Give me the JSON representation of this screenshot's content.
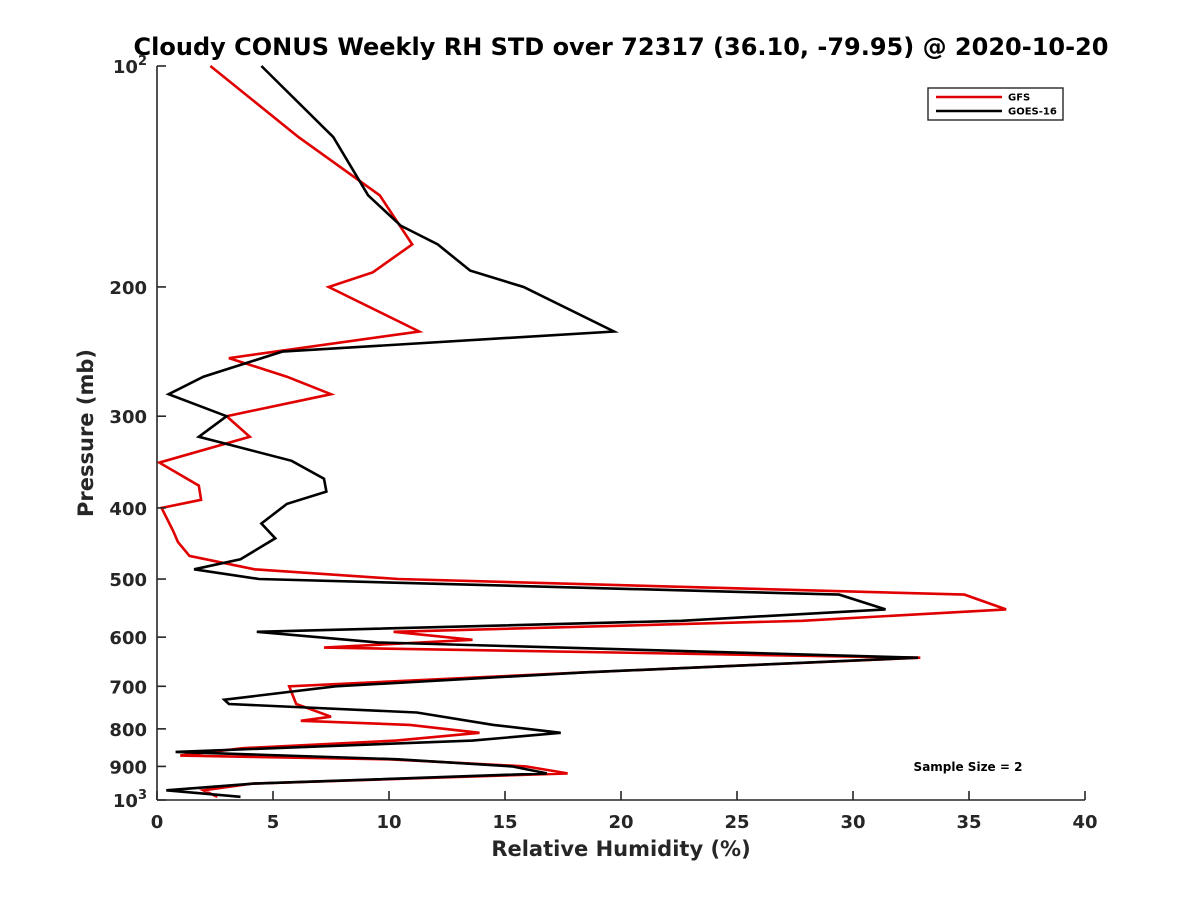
{
  "chart_data": {
    "type": "line",
    "title": "Cloudy CONUS Weekly RH STD over 72317 (36.10, -79.95) @ 2020-10-20",
    "xlabel": "Relative Humidity (%)",
    "ylabel": "Pressure (mb)",
    "xlim": [
      0,
      40
    ],
    "ylim": [
      100,
      1000
    ],
    "yscale": "log",
    "y_reversed": true,
    "x_ticks": [
      0,
      5,
      10,
      15,
      20,
      25,
      30,
      35,
      40
    ],
    "x_tick_labels": [
      "0",
      "5",
      "10",
      "15",
      "20",
      "25",
      "30",
      "35",
      "40"
    ],
    "y_ticks": [
      100,
      200,
      300,
      400,
      500,
      600,
      700,
      800,
      900,
      1000
    ],
    "y_tick_labels": [
      "10^2",
      "200",
      "300",
      "400",
      "500",
      "600",
      "700",
      "800",
      "900",
      "10^3"
    ],
    "grid": false,
    "legend_position": "top-right",
    "annotation": "Sample Size = 2",
    "series": [
      {
        "name": "GFS",
        "color": "#e00000",
        "points": [
          [
            2.3,
            100
          ],
          [
            6.1,
            125
          ],
          [
            9.6,
            150
          ],
          [
            11.0,
            175
          ],
          [
            9.3,
            191
          ],
          [
            7.4,
            200
          ],
          [
            11.3,
            230
          ],
          [
            3.1,
            250
          ],
          [
            5.6,
            265
          ],
          [
            7.5,
            280
          ],
          [
            3.0,
            300
          ],
          [
            4.0,
            320
          ],
          [
            0.1,
            347
          ],
          [
            1.8,
            373
          ],
          [
            1.9,
            390
          ],
          [
            0.2,
            400
          ],
          [
            0.7,
            430
          ],
          [
            0.9,
            445
          ],
          [
            1.4,
            465
          ],
          [
            4.2,
            485
          ],
          [
            10.4,
            500
          ],
          [
            34.8,
            525
          ],
          [
            36.6,
            550
          ],
          [
            27.8,
            570
          ],
          [
            10.2,
            590
          ],
          [
            13.6,
            605
          ],
          [
            7.2,
            620
          ],
          [
            32.9,
            640
          ],
          [
            18.5,
            670
          ],
          [
            5.7,
            700
          ],
          [
            6.0,
            740
          ],
          [
            7.5,
            770
          ],
          [
            6.2,
            780
          ],
          [
            10.9,
            790
          ],
          [
            13.9,
            810
          ],
          [
            10.3,
            830
          ],
          [
            3.7,
            850
          ],
          [
            1.0,
            870
          ],
          [
            10.0,
            880
          ],
          [
            15.9,
            900
          ],
          [
            17.7,
            920
          ],
          [
            4.1,
            950
          ],
          [
            2.0,
            970
          ],
          [
            2.6,
            990
          ]
        ]
      },
      {
        "name": "GOES-16",
        "color": "#000000",
        "points": [
          [
            4.5,
            100
          ],
          [
            7.6,
            125
          ],
          [
            9.1,
            150
          ],
          [
            10.5,
            165
          ],
          [
            12.1,
            175
          ],
          [
            13.5,
            190
          ],
          [
            15.8,
            200
          ],
          [
            19.7,
            230
          ],
          [
            5.4,
            245
          ],
          [
            2.0,
            265
          ],
          [
            0.5,
            280
          ],
          [
            3.0,
            300
          ],
          [
            1.8,
            320
          ],
          [
            5.8,
            345
          ],
          [
            7.2,
            365
          ],
          [
            7.3,
            380
          ],
          [
            5.6,
            395
          ],
          [
            4.5,
            420
          ],
          [
            5.1,
            440
          ],
          [
            3.6,
            470
          ],
          [
            1.6,
            485
          ],
          [
            4.4,
            500
          ],
          [
            29.4,
            525
          ],
          [
            31.4,
            550
          ],
          [
            22.6,
            570
          ],
          [
            4.3,
            590
          ],
          [
            9.5,
            610
          ],
          [
            32.8,
            640
          ],
          [
            18.5,
            670
          ],
          [
            7.7,
            700
          ],
          [
            2.9,
            730
          ],
          [
            3.1,
            740
          ],
          [
            11.2,
            760
          ],
          [
            14.5,
            790
          ],
          [
            17.4,
            810
          ],
          [
            13.6,
            830
          ],
          [
            0.8,
            860
          ],
          [
            10.4,
            880
          ],
          [
            15.3,
            900
          ],
          [
            16.8,
            920
          ],
          [
            4.2,
            950
          ],
          [
            0.4,
            970
          ],
          [
            3.6,
            990
          ]
        ]
      }
    ]
  }
}
